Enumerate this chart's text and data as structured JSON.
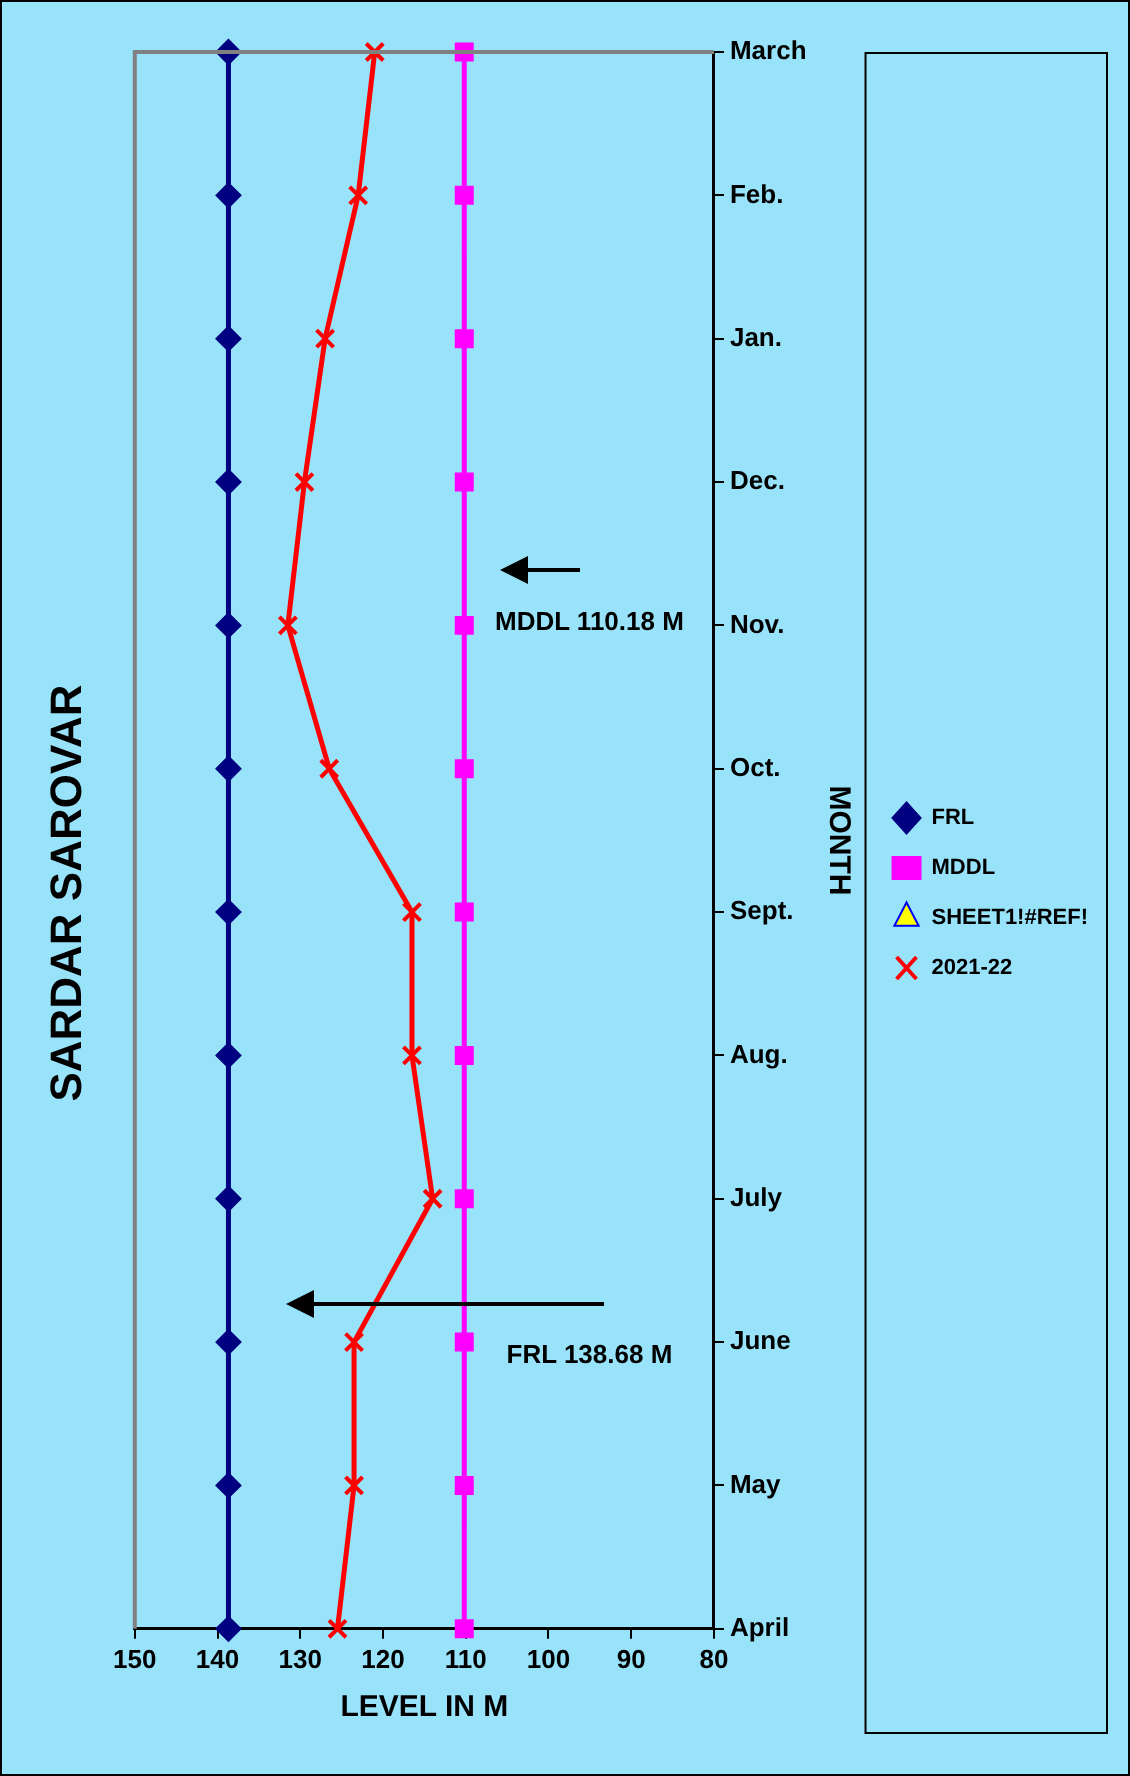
{
  "chart_data": {
    "type": "line",
    "orientation": "horizontal",
    "title": "SARDAR SAROVAR",
    "xlabel": "LEVEL IN M",
    "ylabel": "MONTH",
    "categories": [
      "March",
      "Feb.",
      "Jan.",
      "Dec.",
      "Nov.",
      "Oct.",
      "Sept.",
      "Aug.",
      "July",
      "June",
      "May",
      "April"
    ],
    "series": [
      {
        "name": "FRL",
        "color": "#000080",
        "marker": "diamond",
        "values": [
          138.68,
          138.68,
          138.68,
          138.68,
          138.68,
          138.68,
          138.68,
          138.68,
          138.68,
          138.68,
          138.68,
          138.68
        ]
      },
      {
        "name": "MDDL",
        "color": "#ff00ff",
        "marker": "square",
        "values": [
          110.18,
          110.18,
          110.18,
          110.18,
          110.18,
          110.18,
          110.18,
          110.18,
          110.18,
          110.18,
          110.18,
          110.18
        ]
      },
      {
        "name": "SHEET1!#REF!",
        "color": "#0000ff",
        "marker": "triangle",
        "values": [
          null,
          null,
          null,
          null,
          null,
          null,
          null,
          null,
          null,
          null,
          null,
          null
        ]
      },
      {
        "name": "2021-22",
        "color": "#ff0000",
        "marker": "cross",
        "values": [
          121,
          123,
          127,
          129.5,
          131.5,
          126.5,
          116.5,
          116.5,
          114,
          123.5,
          123.5,
          125.5
        ]
      }
    ],
    "xlim": [
      150,
      80
    ],
    "xticks": [
      150,
      140,
      130,
      120,
      110,
      100,
      90,
      80
    ],
    "grid": false,
    "legend": "right",
    "annotations": [
      "FRL 138.68 M",
      "MDDL 110.18 M"
    ]
  }
}
